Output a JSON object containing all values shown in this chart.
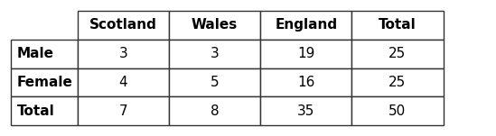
{
  "col_headers": [
    "Scotland",
    "Wales",
    "England",
    "Total"
  ],
  "row_labels": [
    "Male",
    "Female",
    "Total"
  ],
  "cell_data": [
    [
      "3",
      "3",
      "19",
      "25"
    ],
    [
      "4",
      "5",
      "16",
      "25"
    ],
    [
      "7",
      "8",
      "35",
      "50"
    ]
  ],
  "bg_color": "#ffffff",
  "line_color": "#333333",
  "text_color": "#000000",
  "font_size": 11,
  "figsize": [
    5.49,
    1.51
  ],
  "dpi": 100
}
